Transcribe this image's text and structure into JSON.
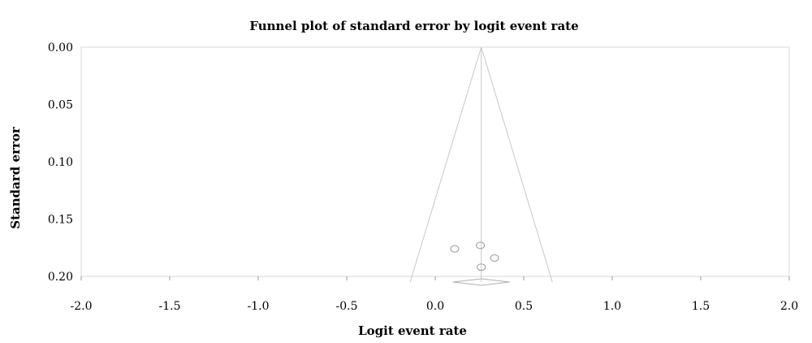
{
  "chart_data": {
    "type": "scatter",
    "title": "Funnel plot of standard error by logit event rate",
    "xlabel": "Logit event rate",
    "ylabel": "Standard error",
    "xlim": [
      -2.0,
      2.0
    ],
    "ylim": [
      0.2,
      0.0
    ],
    "y_inverted": true,
    "x_ticks": [
      "-2.0",
      "-1.5",
      "-1.0",
      "-0.5",
      "0.0",
      "0.5",
      "1.0",
      "1.5",
      "2.0"
    ],
    "y_ticks": [
      "0.00",
      "0.05",
      "0.10",
      "0.15",
      "0.20"
    ],
    "grid": false,
    "pooled_estimate": 0.26,
    "funnel_limit_z": 1.96,
    "points": [
      {
        "x": 0.11,
        "y": 0.176
      },
      {
        "x": 0.255,
        "y": 0.173
      },
      {
        "x": 0.335,
        "y": 0.184
      },
      {
        "x": 0.26,
        "y": 0.192
      }
    ],
    "summary_diamond": {
      "center": 0.26,
      "lower": 0.1,
      "upper": 0.42
    },
    "colors": {
      "frame": "#d8d8d8",
      "funnel": "#c8c8c8",
      "points": "#9a9a9a"
    }
  }
}
